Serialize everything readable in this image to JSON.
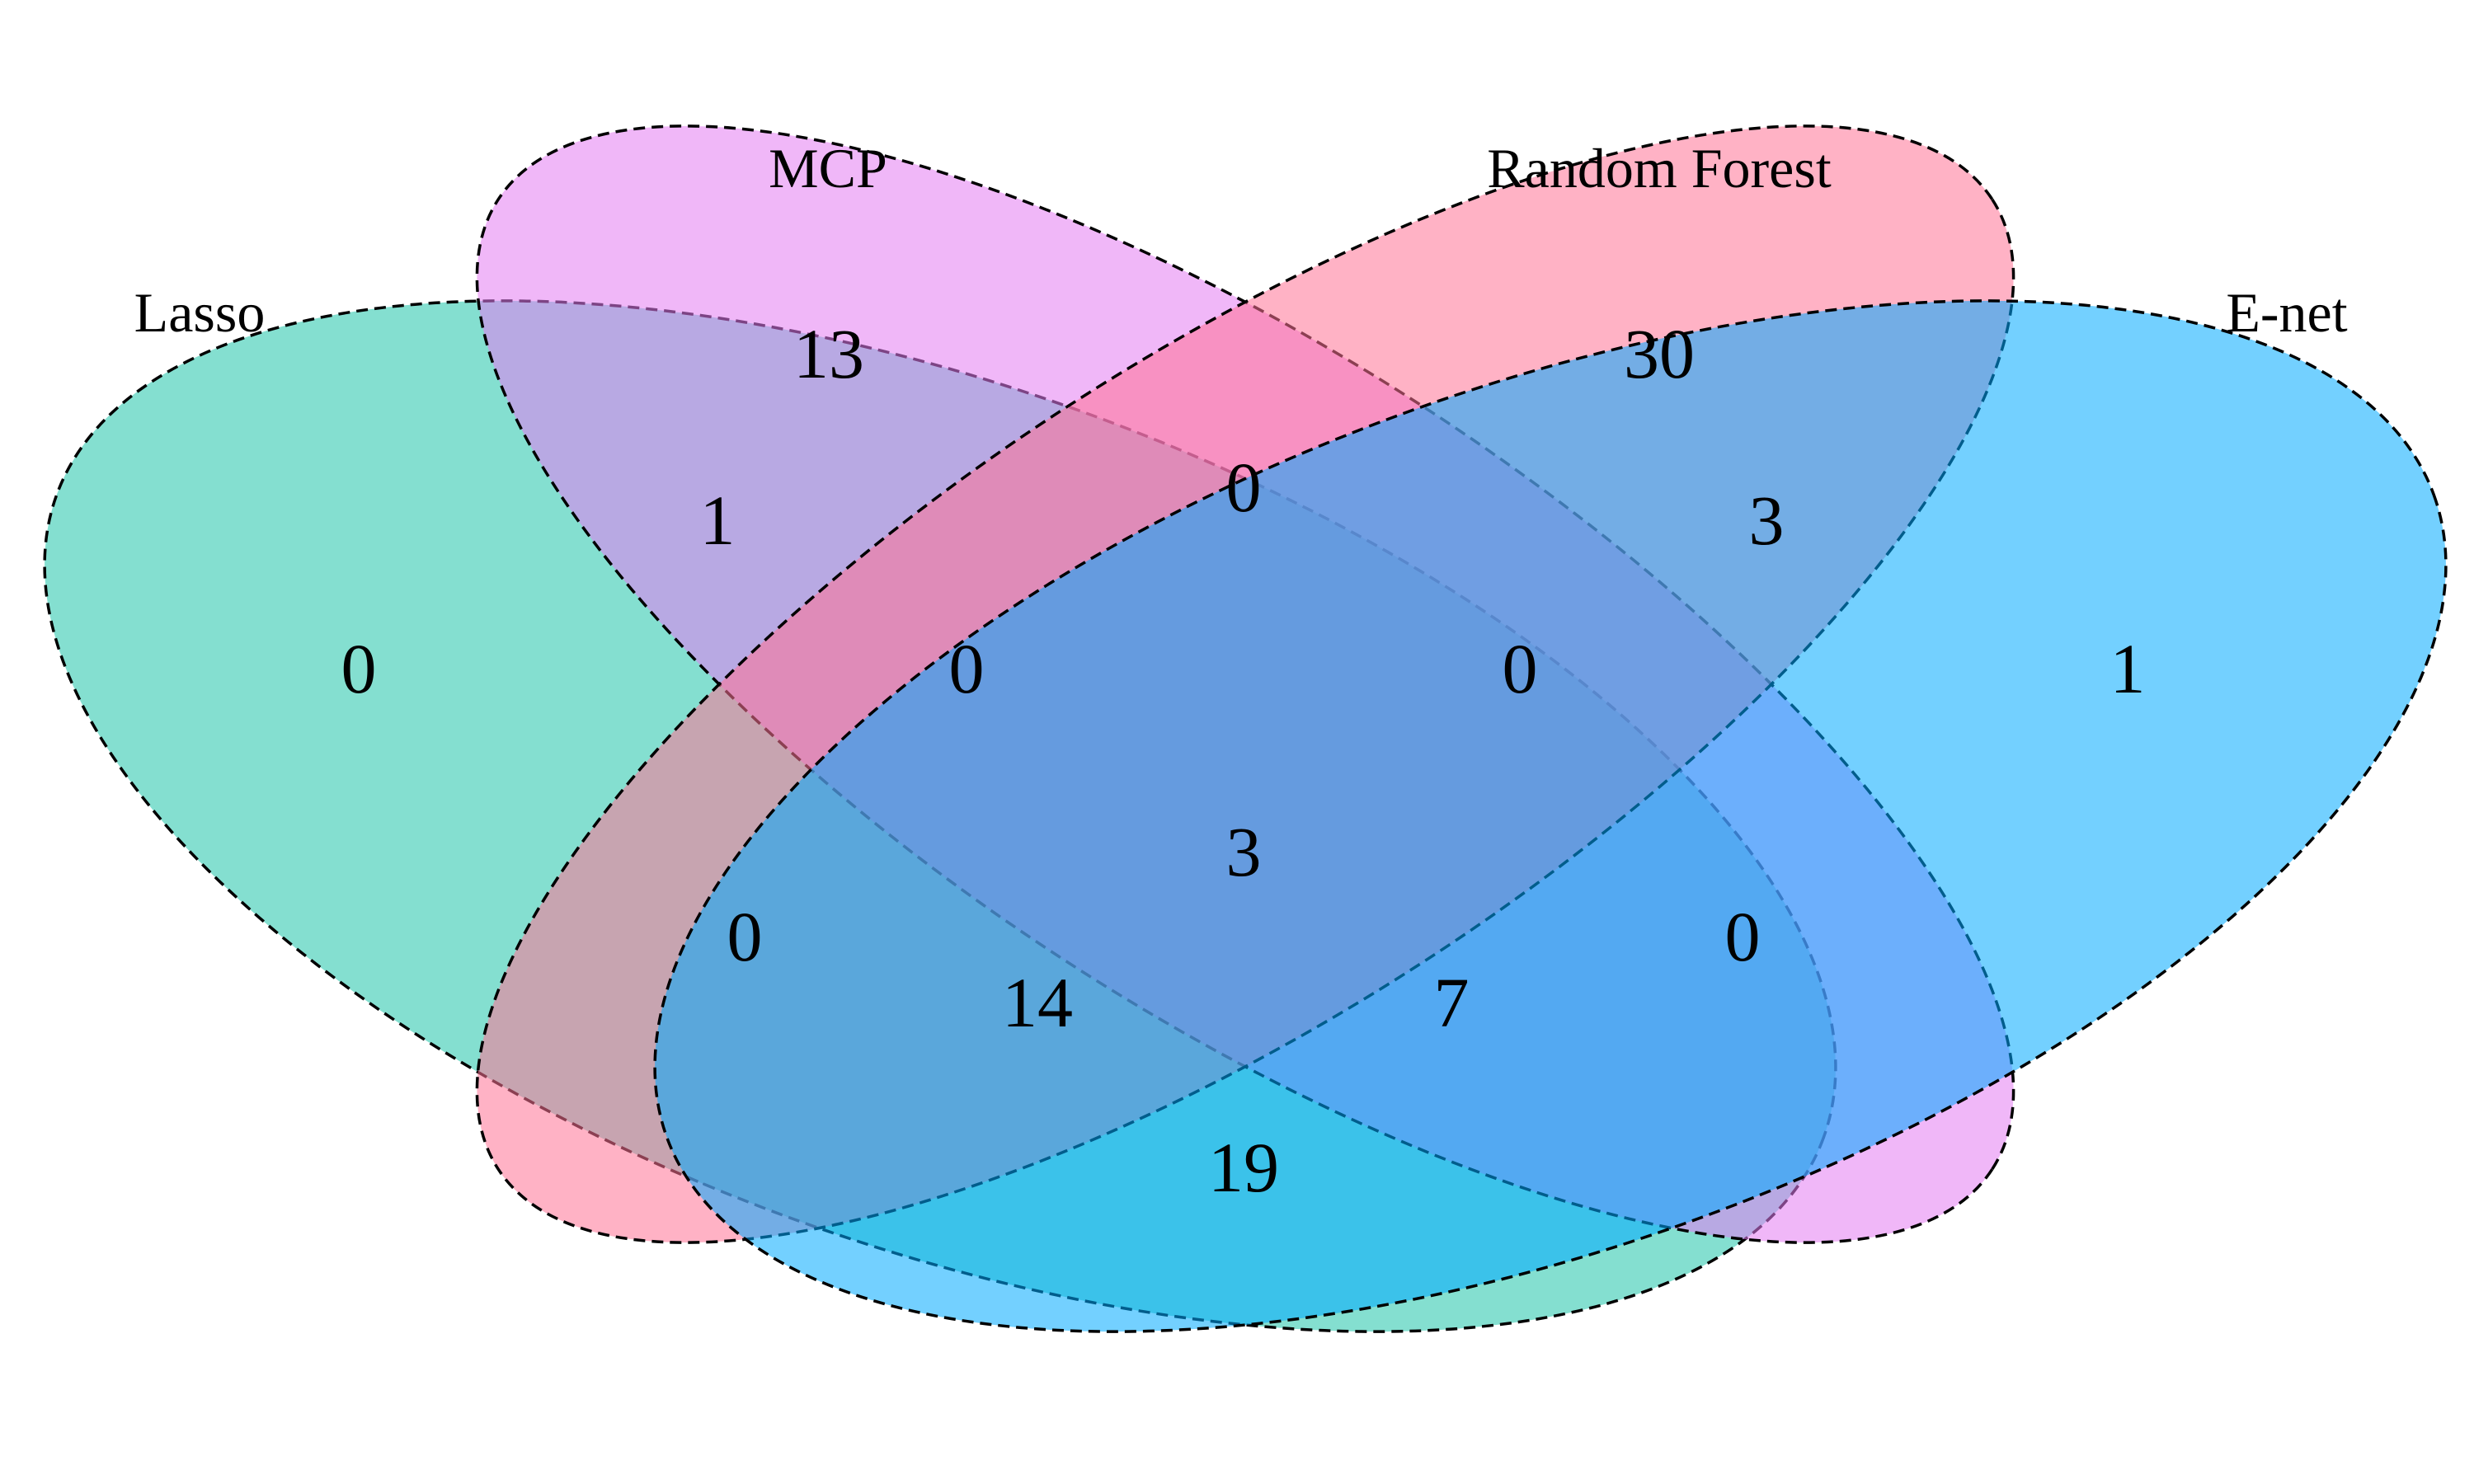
{
  "sets": [
    {
      "id": "lasso",
      "name": "Lasso",
      "color": "#1FC4AA"
    },
    {
      "id": "mcp",
      "name": "MCP",
      "color": "#E47CF2"
    },
    {
      "id": "rf",
      "name": "Random Forest",
      "color": "#FF7395"
    },
    {
      "id": "enet",
      "name": "E-net",
      "color": "#00A9FF"
    }
  ],
  "regions": {
    "lasso_only": "0",
    "mcp_only": "13",
    "rf_only": "30",
    "enet_only": "1",
    "lasso_mcp": "1",
    "mcp_rf": "0",
    "rf_enet": "3",
    "lasso_mcp_rf": "0",
    "mcp_rf_enet": "0",
    "all_four": "3",
    "lasso_rf": "0",
    "mcp_enet": "0",
    "lasso_rf_enet": "14",
    "lasso_mcp_enet": "7",
    "lasso_enet": "19"
  }
}
